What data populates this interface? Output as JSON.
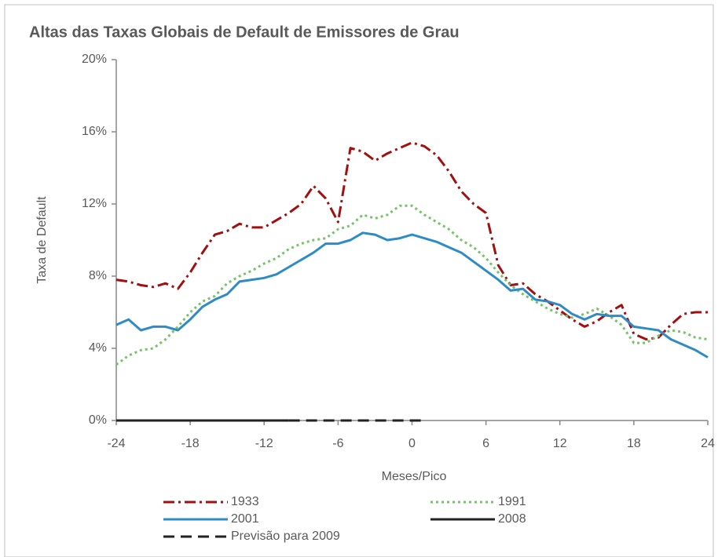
{
  "chart_data": {
    "type": "line",
    "title": "Altas das Taxas Globais de Default de Emissores de Grau",
    "x_label": "Meses/Pico",
    "y_label": "Taxa de Default",
    "x": [
      -24,
      -23,
      -22,
      -21,
      -20,
      -19,
      -18,
      -17,
      -16,
      -15,
      -14,
      -13,
      -12,
      -11,
      -10,
      -9,
      -8,
      -7,
      -6,
      -5,
      -4,
      -3,
      -2,
      -1,
      0,
      1,
      2,
      3,
      4,
      5,
      6,
      7,
      8,
      9,
      10,
      11,
      12,
      13,
      14,
      15,
      16,
      17,
      18,
      19,
      20,
      21,
      22,
      23,
      24
    ],
    "xlim": [
      -24,
      24
    ],
    "xticks": [
      -24,
      -18,
      -12,
      -6,
      0,
      6,
      12,
      18,
      24
    ],
    "ylim": [
      0,
      20
    ],
    "yticks": [
      {
        "value": 0,
        "label": "0%"
      },
      {
        "value": 4,
        "label": "4%"
      },
      {
        "value": 8,
        "label": "8%"
      },
      {
        "value": 12,
        "label": "12%"
      },
      {
        "value": 16,
        "label": "16%"
      },
      {
        "value": 20,
        "label": "20%"
      }
    ],
    "grid": false,
    "series": [
      {
        "name": "1933",
        "color": "#A01010",
        "dash": "14,5,3,5",
        "values": [
          7.8,
          7.7,
          7.5,
          7.4,
          7.6,
          7.3,
          8.2,
          9.3,
          10.3,
          10.5,
          10.9,
          10.7,
          10.7,
          11.1,
          11.5,
          12.0,
          13.0,
          12.3,
          11.0,
          15.1,
          14.9,
          14.4,
          14.8,
          15.1,
          15.4,
          15.2,
          14.7,
          13.8,
          12.7,
          12.0,
          11.5,
          8.6,
          7.5,
          7.6,
          7.0,
          6.6,
          6.1,
          5.6,
          5.2,
          5.5,
          6.0,
          6.4,
          4.8,
          4.5,
          4.6,
          5.3,
          5.9,
          6.0,
          6.0
        ]
      },
      {
        "name": "1991",
        "color": "#77C26A",
        "dash": "3,4",
        "values": [
          3.1,
          3.6,
          3.9,
          4.0,
          4.5,
          5.2,
          6.0,
          6.6,
          6.9,
          7.6,
          8.0,
          8.3,
          8.7,
          9.0,
          9.5,
          9.8,
          10.0,
          10.1,
          10.6,
          10.8,
          11.4,
          11.2,
          11.4,
          11.9,
          11.9,
          11.4,
          11.0,
          10.6,
          10.0,
          9.6,
          9.0,
          8.2,
          7.5,
          7.0,
          6.6,
          6.2,
          5.9,
          5.7,
          5.9,
          6.2,
          5.8,
          5.3,
          4.3,
          4.3,
          4.7,
          5.0,
          4.9,
          4.6,
          4.5
        ]
      },
      {
        "name": "2001",
        "color": "#2F8BC6",
        "dash": "none",
        "values": [
          5.3,
          5.6,
          5.0,
          5.2,
          5.2,
          5.0,
          5.6,
          6.3,
          6.7,
          7.0,
          7.7,
          7.8,
          7.9,
          8.1,
          8.5,
          8.9,
          9.3,
          9.8,
          9.8,
          10.0,
          10.4,
          10.3,
          10.0,
          10.1,
          10.3,
          10.1,
          9.9,
          9.6,
          9.3,
          8.8,
          8.3,
          7.8,
          7.2,
          7.3,
          6.7,
          6.6,
          6.4,
          5.9,
          5.6,
          5.9,
          5.8,
          5.8,
          5.2,
          5.1,
          5.0,
          4.5,
          4.2,
          3.9,
          3.5
        ]
      },
      {
        "name": "2008",
        "color": "#222222",
        "dash": "none",
        "x": [
          -24,
          -23,
          -22,
          -21,
          -20,
          -19,
          -18,
          -17,
          -16,
          -15,
          -14,
          -13,
          -12,
          -11,
          -10
        ],
        "values": [
          0,
          0,
          0,
          0,
          0,
          0,
          0,
          0,
          0,
          0,
          0,
          0,
          0,
          0,
          0
        ]
      },
      {
        "name": "Previsão para 2009",
        "color": "#222222",
        "dash": "14,8",
        "x": [
          -10,
          -9,
          -8,
          -7,
          -6,
          -5,
          -4,
          -3,
          -2,
          -1,
          0,
          1
        ],
        "values": [
          0,
          0,
          0,
          0,
          0,
          0,
          0,
          0,
          0,
          0,
          0,
          0
        ]
      }
    ]
  }
}
